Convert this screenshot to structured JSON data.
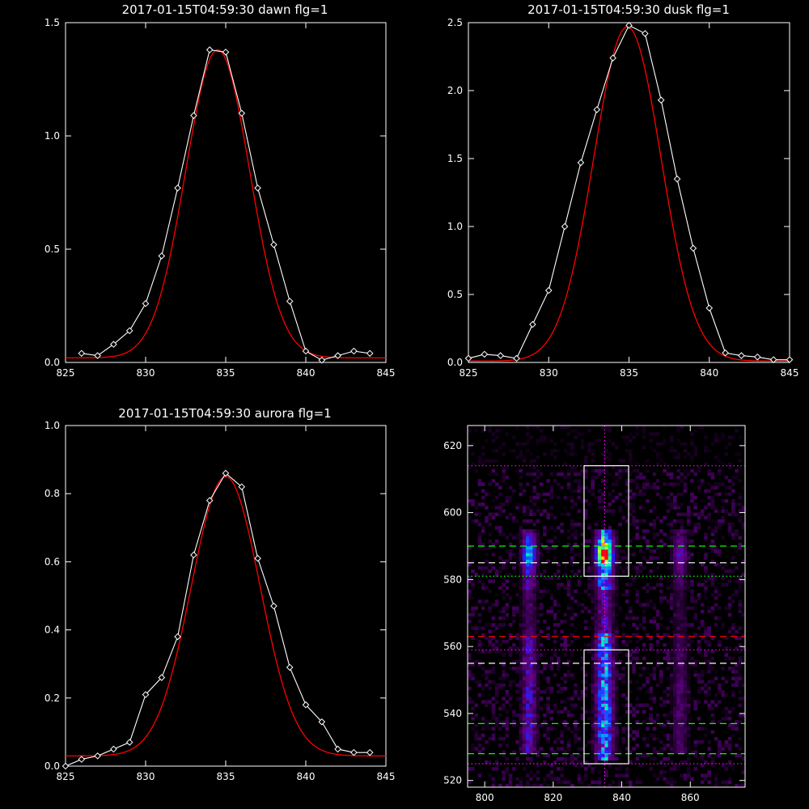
{
  "chart_data": [
    {
      "type": "line",
      "title": "2017-01-15T04:59:30 dawn flg=1",
      "xlim": [
        825,
        845
      ],
      "ylim": [
        0,
        1.5
      ],
      "xticks": [
        "825",
        "830",
        "835",
        "840",
        "845"
      ],
      "yticks": [
        "0.0",
        "0.5",
        "1.0",
        "1.5"
      ],
      "series": [
        {
          "kind": "data",
          "color": "#ffffff",
          "marker": "diamond",
          "x": [
            826,
            827,
            828,
            829,
            830,
            831,
            832,
            833,
            834,
            835,
            836,
            837,
            838,
            839,
            840,
            841,
            842,
            843,
            844
          ],
          "y": [
            0.04,
            0.03,
            0.08,
            0.14,
            0.26,
            0.47,
            0.77,
            1.09,
            1.38,
            1.37,
            1.1,
            0.77,
            0.52,
            0.27,
            0.05,
            0.01,
            0.03,
            0.05,
            0.04
          ]
        },
        {
          "kind": "fit",
          "color": "#ff0000",
          "center": 834.5,
          "amplitude": 1.36,
          "sigma": 2.0,
          "baseline": 0.02,
          "xrange": [
            825,
            845
          ]
        }
      ]
    },
    {
      "type": "line",
      "title": "2017-01-15T04:59:30 dusk flg=1",
      "xlim": [
        825,
        845
      ],
      "ylim": [
        0,
        2.5
      ],
      "xticks": [
        "825",
        "830",
        "835",
        "840",
        "845"
      ],
      "yticks": [
        "0.0",
        "0.5",
        "1.0",
        "1.5",
        "2.0",
        "2.5"
      ],
      "series": [
        {
          "kind": "data",
          "color": "#ffffff",
          "marker": "diamond",
          "x": [
            825,
            826,
            827,
            828,
            829,
            830,
            831,
            832,
            833,
            834,
            835,
            836,
            837,
            838,
            839,
            840,
            841,
            842,
            843,
            844,
            845
          ],
          "y": [
            0.03,
            0.06,
            0.05,
            0.03,
            0.28,
            0.53,
            1.0,
            1.47,
            1.86,
            2.24,
            2.48,
            2.42,
            1.93,
            1.35,
            0.84,
            0.4,
            0.07,
            0.05,
            0.04,
            0.02,
            0.02
          ]
        },
        {
          "kind": "fit",
          "color": "#ff0000",
          "center": 834.9,
          "amplitude": 2.46,
          "sigma": 2.1,
          "baseline": 0.01,
          "xrange": [
            825,
            845
          ]
        }
      ]
    },
    {
      "type": "line",
      "title": "2017-01-15T04:59:30 aurora flg=1",
      "xlim": [
        825,
        845
      ],
      "ylim": [
        0,
        1.0
      ],
      "xticks": [
        "825",
        "830",
        "835",
        "840",
        "845"
      ],
      "yticks": [
        "0.0",
        "0.2",
        "0.4",
        "0.6",
        "0.8",
        "1.0"
      ],
      "series": [
        {
          "kind": "data",
          "color": "#ffffff",
          "marker": "diamond",
          "x": [
            825,
            826,
            827,
            828,
            829,
            830,
            831,
            832,
            833,
            834,
            835,
            836,
            837,
            838,
            839,
            840,
            841,
            842,
            843,
            844
          ],
          "y": [
            0.0,
            0.02,
            0.03,
            0.05,
            0.07,
            0.21,
            0.26,
            0.38,
            0.62,
            0.78,
            0.86,
            0.82,
            0.61,
            0.47,
            0.29,
            0.18,
            0.13,
            0.05,
            0.04,
            0.04
          ]
        },
        {
          "kind": "fit",
          "color": "#ff0000",
          "center": 835.0,
          "amplitude": 0.82,
          "sigma": 2.15,
          "baseline": 0.03,
          "xrange": [
            825,
            845
          ]
        }
      ]
    },
    {
      "type": "heatmap",
      "title": "",
      "xlim": [
        795,
        876
      ],
      "ylim": [
        518,
        626
      ],
      "xticks": [
        "800",
        "820",
        "840",
        "860"
      ],
      "yticks": [
        "520",
        "540",
        "560",
        "580",
        "600",
        "620"
      ],
      "colormap": [
        "#000000",
        "#3a0050",
        "#6a0090",
        "#2020ff",
        "#00a0ff",
        "#00ffb0",
        "#ffff00",
        "#ff0000"
      ],
      "emission_bands": [
        {
          "x_center": 813,
          "x_halfwidth": 2.5,
          "y_from": 528,
          "y_to": 594,
          "peak": 0.45,
          "hot_y": 587
        },
        {
          "x_center": 835,
          "x_halfwidth": 3,
          "y_from": 526,
          "y_to": 594,
          "peak": 0.75,
          "hot_y": 587
        },
        {
          "x_center": 857,
          "x_halfwidth": 2.5,
          "y_from": 528,
          "y_to": 594,
          "peak": 0.25,
          "hot_y": 587
        }
      ],
      "overlays": [
        {
          "kind": "vline",
          "x": 835,
          "color": "#ff00ff",
          "style": "dotted"
        },
        {
          "kind": "hline",
          "y": 614,
          "color": "#ff00ff",
          "style": "dotted"
        },
        {
          "kind": "hline",
          "y": 590,
          "color": "#00ff00",
          "style": "dashed"
        },
        {
          "kind": "hline",
          "y": 585,
          "color": "#ffffff",
          "style": "dashed"
        },
        {
          "kind": "hline",
          "y": 581,
          "color": "#00ff00",
          "style": "dotted"
        },
        {
          "kind": "hline",
          "y": 563,
          "color": "#ff0000",
          "style": "dashed"
        },
        {
          "kind": "hline",
          "y": 559,
          "color": "#ff00ff",
          "style": "dotted"
        },
        {
          "kind": "hline",
          "y": 555,
          "color": "#ffffff",
          "style": "dashed"
        },
        {
          "kind": "hline",
          "y": 537,
          "color": "#00ff00",
          "style": "dashed"
        },
        {
          "kind": "hline",
          "y": 528,
          "color": "#00ff00",
          "style": "dashed"
        },
        {
          "kind": "hline",
          "y": 525,
          "color": "#ff00ff",
          "style": "dotted"
        },
        {
          "kind": "box",
          "x0": 829,
          "x1": 842,
          "y0": 581,
          "y1": 614,
          "color": "#ffffff"
        },
        {
          "kind": "box",
          "x0": 829,
          "x1": 842,
          "y0": 525,
          "y1": 559,
          "color": "#ffffff"
        }
      ]
    }
  ]
}
